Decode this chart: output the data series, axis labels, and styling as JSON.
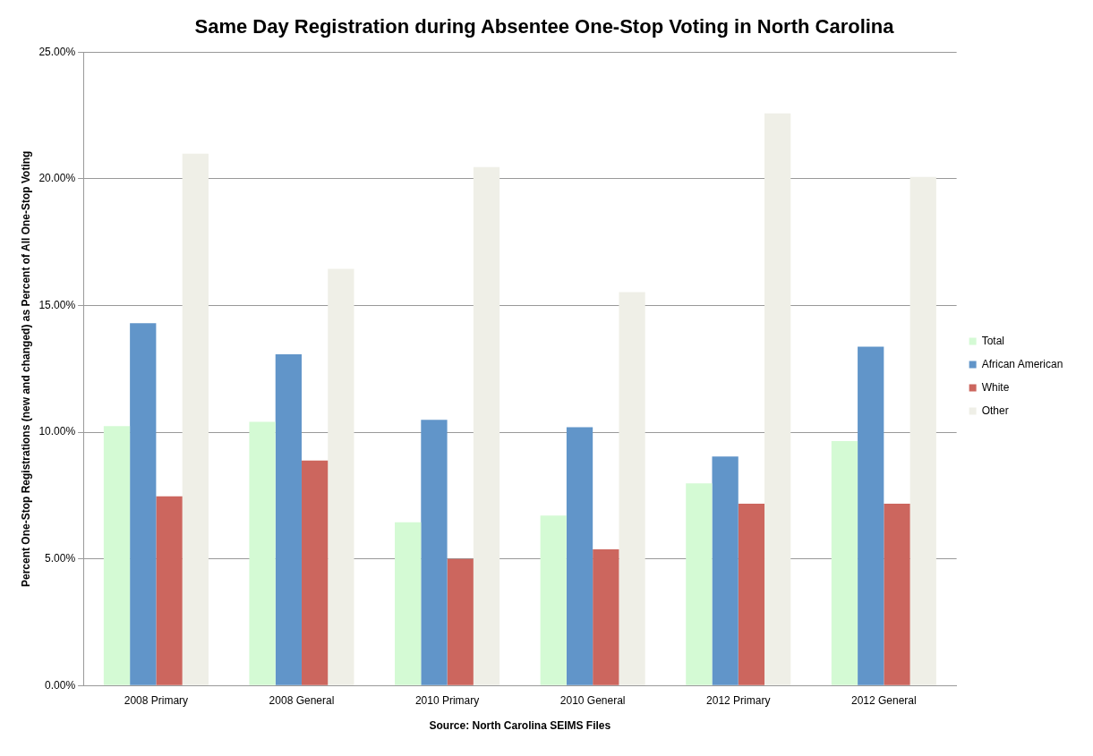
{
  "chart_data": {
    "type": "bar",
    "title": "Same Day Registration during Absentee One-Stop Voting in North Carolina",
    "xlabel": "Source: North Carolina SEIMS Files",
    "ylabel": "Percent One-Stop Registrations (new and changed) as Percent of All One-Stop Voting",
    "categories": [
      "2008 Primary",
      "2008 General",
      "2010 Primary",
      "2010 General",
      "2012 Primary",
      "2012 General"
    ],
    "series": [
      {
        "name": "Total",
        "color": "#d4fad4",
        "values": [
          10.24,
          10.41,
          6.44,
          6.71,
          7.98,
          9.65
        ]
      },
      {
        "name": "African American",
        "color": "#6195c9",
        "values": [
          14.3,
          13.08,
          10.49,
          10.2,
          9.04,
          13.38
        ]
      },
      {
        "name": "White",
        "color": "#cc665e",
        "values": [
          7.47,
          8.88,
          5.0,
          5.38,
          7.18,
          7.18
        ]
      },
      {
        "name": "Other",
        "color": "#efefe7",
        "values": [
          21.0,
          16.45,
          20.47,
          15.53,
          22.59,
          20.08
        ]
      }
    ],
    "ylim": [
      0,
      25
    ],
    "yticks": [
      {
        "value": 0,
        "label": "0.00%"
      },
      {
        "value": 5,
        "label": "5.00%"
      },
      {
        "value": 10,
        "label": "10.00%"
      },
      {
        "value": 15,
        "label": "15.00%"
      },
      {
        "value": 20,
        "label": "20.00%"
      },
      {
        "value": 25,
        "label": "25.00%"
      }
    ],
    "grid": "y",
    "legend": "right"
  }
}
